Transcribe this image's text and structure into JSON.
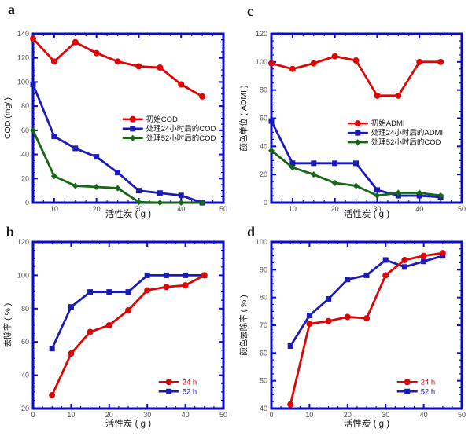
{
  "colors": {
    "red": "#e00505",
    "blue": "#1a1ab8",
    "green": "#156615",
    "frame": "#0a0ad0",
    "tick_label": "#4b4b4b",
    "text": "#111111"
  },
  "chart_data": [
    {
      "panel": "a",
      "type": "line",
      "xlabel": "活性炭 ( g )",
      "ylabel": "COD (mg/l)",
      "xlim": [
        5,
        50
      ],
      "ylim": [
        0,
        140
      ],
      "xticks": [
        10,
        20,
        30,
        40,
        50
      ],
      "yticks": [
        0,
        20,
        40,
        60,
        80,
        100,
        120,
        140
      ],
      "x": [
        5,
        10,
        15,
        20,
        25,
        30,
        35,
        40,
        45
      ],
      "series": [
        {
          "name": "初始COD",
          "color": "red",
          "marker": "circle",
          "values": [
            136,
            117,
            133,
            124,
            117,
            113,
            112,
            98,
            88
          ]
        },
        {
          "name": "处理24小时后的COD",
          "color": "blue",
          "marker": "square",
          "values": [
            98,
            55,
            45,
            38,
            25,
            10,
            8,
            6,
            0
          ]
        },
        {
          "name": "处理52小时后的COD",
          "color": "green",
          "marker": "diamond",
          "values": [
            60,
            22,
            14,
            13,
            12,
            0.5,
            0,
            0,
            0
          ]
        }
      ],
      "legend_pos": [
        0.47,
        0.52
      ],
      "legend_text": "plain",
      "grid": false,
      "legend_position_hint": "center-right inside plot"
    },
    {
      "panel": "c",
      "type": "line",
      "xlabel": "活性炭 ( g )",
      "ylabel": "颜色单位 ( ADMI )",
      "xlim": [
        5,
        50
      ],
      "ylim": [
        0,
        120
      ],
      "xticks": [
        10,
        20,
        30,
        40,
        50
      ],
      "yticks": [
        0,
        20,
        40,
        60,
        80,
        100,
        120
      ],
      "x": [
        5,
        10,
        15,
        20,
        25,
        30,
        35,
        40,
        45
      ],
      "series": [
        {
          "name": "初始ADMI",
          "color": "red",
          "marker": "circle",
          "values": [
            99,
            95,
            99,
            104,
            101,
            76,
            76,
            100,
            100
          ]
        },
        {
          "name": "处理24小时后的ADMI",
          "color": "blue",
          "marker": "square",
          "values": [
            58,
            28,
            28,
            28,
            28,
            9,
            5,
            5,
            4
          ]
        },
        {
          "name": "处理52小时后的COD",
          "color": "green",
          "marker": "diamond",
          "values": [
            37,
            25,
            20,
            14,
            12,
            5,
            7,
            7,
            5
          ]
        }
      ],
      "legend_pos": [
        0.4,
        0.545
      ],
      "legend_text": "plain",
      "grid": false,
      "legend_position_hint": "center-right inside plot"
    },
    {
      "panel": "b",
      "type": "line",
      "xlabel": "活性炭 ( g )",
      "ylabel": "去除率 ( % )",
      "xlim": [
        0,
        50
      ],
      "ylim": [
        20,
        120
      ],
      "xticks": [
        0,
        10,
        20,
        30,
        40,
        50
      ],
      "yticks": [
        20,
        40,
        60,
        80,
        100,
        120
      ],
      "x": [
        5,
        10,
        15,
        20,
        25,
        30,
        35,
        40,
        45
      ],
      "series": [
        {
          "name": "24 h",
          "color": "red",
          "marker": "circle",
          "values": [
            28,
            53,
            66,
            70,
            79,
            91,
            93,
            94,
            100
          ]
        },
        {
          "name": "52 h",
          "color": "blue",
          "marker": "square",
          "values": [
            56,
            81,
            90,
            90,
            90,
            100,
            100,
            100,
            100
          ]
        }
      ],
      "legend_pos": [
        0.66,
        0.855
      ],
      "legend_text": "colored",
      "z_reverse": true,
      "grid": false,
      "legend_position_hint": "bottom-right inside plot"
    },
    {
      "panel": "d",
      "type": "line",
      "xlabel": "活性炭 ( g )",
      "ylabel": "颜色去除率 ( % )",
      "xlim": [
        0,
        50
      ],
      "ylim": [
        40,
        100
      ],
      "xticks": [
        0,
        10,
        20,
        30,
        40,
        50
      ],
      "yticks": [
        40,
        50,
        60,
        70,
        80,
        90,
        100
      ],
      "x": [
        5,
        10,
        15,
        20,
        25,
        30,
        35,
        40,
        45
      ],
      "series": [
        {
          "name": "24 h",
          "color": "red",
          "marker": "circle",
          "values": [
            41.5,
            70.5,
            71.5,
            73,
            72.5,
            88,
            93.5,
            95,
            96
          ]
        },
        {
          "name": "52 h",
          "color": "blue",
          "marker": "square",
          "values": [
            62.5,
            73.5,
            79.5,
            86.5,
            88,
            93.5,
            91,
            93,
            95
          ]
        }
      ],
      "legend_pos": [
        0.66,
        0.855
      ],
      "legend_text": "colored",
      "z_reverse": true,
      "grid": false,
      "legend_position_hint": "bottom-right inside plot"
    }
  ]
}
